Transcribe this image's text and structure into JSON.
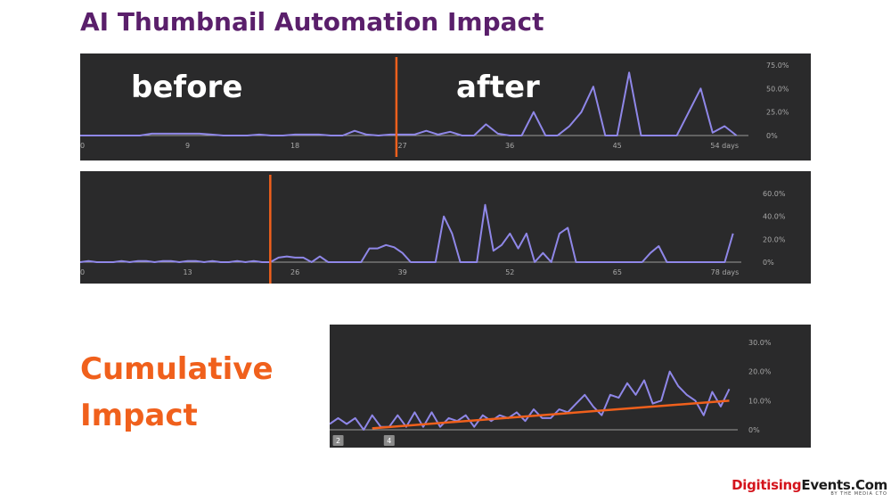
{
  "header": {
    "title": "AI Thumbnail Automation Impact"
  },
  "labels": {
    "before": "before",
    "after": "after",
    "cumulative_line1": "Cumulative",
    "cumulative_line2": "Impact"
  },
  "logo": {
    "part1": "Digitising",
    "part2": "Events.Com",
    "tagline": "BY THE MEDIA CTO"
  },
  "colors": {
    "line": "#8f87e8",
    "marker": "#f0601c",
    "panel": "#2a2a2b",
    "title": "#5a1f6b"
  },
  "chart_data": [
    {
      "type": "line",
      "title": "",
      "xlim": [
        0,
        56
      ],
      "ylim": [
        0,
        75
      ],
      "x_ticks": [
        0,
        9,
        18,
        27,
        36,
        45,
        54
      ],
      "x_tick_labels": [
        "0",
        "9",
        "18",
        "27",
        "36",
        "45",
        "54 days"
      ],
      "y_ticks": [
        0,
        25,
        50,
        75
      ],
      "y_tick_labels": [
        "0%",
        "25.0%",
        "50.0%",
        "75.0%"
      ],
      "marker_x": 26.5,
      "series": [
        {
          "name": "",
          "x": [
            0,
            1,
            2,
            3,
            4,
            5,
            6,
            7,
            8,
            9,
            10,
            11,
            12,
            13,
            14,
            15,
            16,
            17,
            18,
            19,
            20,
            21,
            22,
            23,
            24,
            25,
            26,
            27,
            28,
            29,
            30,
            31,
            32,
            33,
            34,
            35,
            36,
            37,
            38,
            39,
            40,
            41,
            42,
            43,
            44,
            45,
            46,
            47,
            48,
            49,
            50,
            51,
            52,
            53,
            54,
            55
          ],
          "values": [
            0,
            0,
            0,
            0,
            0,
            0,
            2,
            2,
            2,
            2,
            2,
            1,
            0,
            0,
            0,
            1,
            0,
            0,
            1,
            1,
            1,
            0,
            0,
            5,
            1,
            0,
            1,
            1,
            1,
            5,
            1,
            4,
            0,
            0,
            12,
            2,
            0,
            0,
            25,
            0,
            0,
            10,
            25,
            52,
            0,
            0,
            67,
            0,
            0,
            0,
            0,
            25,
            50,
            3,
            10,
            0
          ]
        }
      ]
    },
    {
      "type": "line",
      "title": "",
      "xlim": [
        0,
        80
      ],
      "ylim": [
        0,
        60
      ],
      "x_ticks": [
        0,
        13,
        26,
        39,
        52,
        65,
        78
      ],
      "x_tick_labels": [
        "0",
        "13",
        "26",
        "39",
        "52",
        "65",
        "78 days"
      ],
      "y_ticks": [
        0,
        20,
        40,
        60
      ],
      "y_tick_labels": [
        "0%",
        "20.0%",
        "40.0%",
        "60.0%"
      ],
      "marker_x": 23,
      "series": [
        {
          "name": "",
          "x": [
            0,
            1,
            2,
            3,
            4,
            5,
            6,
            7,
            8,
            9,
            10,
            11,
            12,
            13,
            14,
            15,
            16,
            17,
            18,
            19,
            20,
            21,
            22,
            23,
            24,
            25,
            26,
            27,
            28,
            29,
            30,
            31,
            32,
            33,
            34,
            35,
            36,
            37,
            38,
            39,
            40,
            41,
            42,
            43,
            44,
            45,
            46,
            47,
            48,
            49,
            50,
            51,
            52,
            53,
            54,
            55,
            56,
            57,
            58,
            59,
            60,
            61,
            62,
            63,
            64,
            65,
            66,
            67,
            68,
            69,
            70,
            71,
            72,
            73,
            74,
            75,
            76,
            77,
            78,
            79
          ],
          "values": [
            0,
            1,
            0,
            0,
            0,
            1,
            0,
            1,
            1,
            0,
            1,
            1,
            0,
            1,
            1,
            0,
            1,
            0,
            0,
            1,
            0,
            1,
            0,
            0,
            4,
            5,
            4,
            4,
            0,
            5,
            0,
            0,
            0,
            0,
            0,
            12,
            12,
            15,
            13,
            8,
            0,
            0,
            0,
            0,
            40,
            25,
            0,
            0,
            0,
            50,
            10,
            15,
            25,
            12,
            25,
            0,
            8,
            0,
            25,
            30,
            0,
            0,
            0,
            0,
            0,
            0,
            0,
            0,
            0,
            8,
            14,
            0,
            0,
            0,
            0,
            0,
            0,
            0,
            0,
            25
          ]
        }
      ]
    },
    {
      "type": "line",
      "title": "",
      "xlim": [
        0,
        48
      ],
      "ylim": [
        0,
        30
      ],
      "x_ticks": [
        1,
        7
      ],
      "x_tick_labels": [
        "2",
        "4"
      ],
      "y_ticks": [
        0,
        10,
        20,
        30
      ],
      "y_tick_labels": [
        "0%",
        "10.0%",
        "20.0%",
        "30.0%"
      ],
      "trend_line": {
        "x": [
          5,
          47
        ],
        "y": [
          0.5,
          10
        ]
      },
      "series": [
        {
          "name": "",
          "x": [
            0,
            1,
            2,
            3,
            4,
            5,
            6,
            7,
            8,
            9,
            10,
            11,
            12,
            13,
            14,
            15,
            16,
            17,
            18,
            19,
            20,
            21,
            22,
            23,
            24,
            25,
            26,
            27,
            28,
            29,
            30,
            31,
            32,
            33,
            34,
            35,
            36,
            37,
            38,
            39,
            40,
            41,
            42,
            43,
            44,
            45,
            46,
            47
          ],
          "values": [
            2,
            4,
            2,
            4,
            0,
            5,
            1,
            1,
            5,
            1,
            6,
            1,
            6,
            1,
            4,
            3,
            5,
            1,
            5,
            3,
            5,
            4,
            6,
            3,
            7,
            4,
            4,
            7,
            6,
            9,
            12,
            8,
            5,
            12,
            11,
            16,
            12,
            17,
            9,
            10,
            20,
            15,
            12,
            10,
            5,
            13,
            8,
            14
          ]
        }
      ]
    }
  ]
}
